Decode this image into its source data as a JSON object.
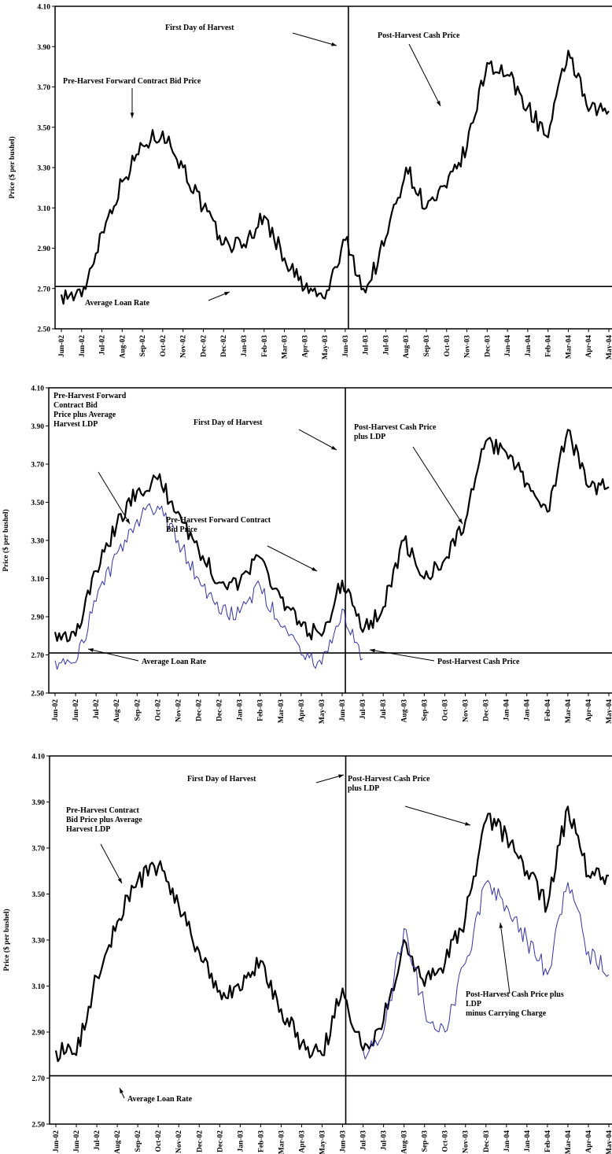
{
  "chart_data": [
    {
      "type": "line",
      "ylabel": "Price ($ per bushel)",
      "ylim": [
        2.5,
        4.1
      ],
      "yticks": [
        "4.10",
        "3.90",
        "3.70",
        "3.50",
        "3.30",
        "3.10",
        "2.90",
        "2.70",
        "2.50"
      ],
      "xticks": [
        "Jun-02",
        "Jun-02",
        "Jul-02",
        "Aug-02",
        "Sep-02",
        "Oct-02",
        "Nov-02",
        "Dec-02",
        "Dec-02",
        "Jan-03",
        "Feb-03",
        "Mar-03",
        "Apr-03",
        "May-03",
        "Jun-03",
        "Jul-03",
        "Jul-03",
        "Aug-03",
        "Sep-03",
        "Oct-03",
        "Nov-03",
        "Dec-03",
        "Jan-04",
        "Jan-04",
        "Feb-04",
        "Mar-04",
        "Apr-04",
        "May-04"
      ],
      "loan_rate": 2.71,
      "harvest_index": 14,
      "series": [
        {
          "values": [
            2.67,
            2.66,
            2.98,
            3.23,
            3.41,
            3.48,
            3.3,
            3.1,
            2.92,
            2.92,
            3.06,
            2.85,
            2.7,
            2.65,
            2.94,
            2.68,
            2.95,
            3.3,
            3.1,
            3.2,
            3.4,
            3.82,
            3.76,
            3.6,
            3.45,
            3.88,
            3.58,
            3.58
          ],
          "color": "#000000",
          "width": 2.2
        }
      ],
      "annotations": [
        {
          "text": "First Day of Harvest"
        },
        {
          "text": "Post-Harvest Cash Price"
        },
        {
          "text": "Pre-Harvest Forward Contract Bid Price"
        },
        {
          "text": "Average Loan Rate"
        }
      ]
    },
    {
      "type": "line",
      "ylabel": "Price ($ per bushel)",
      "ylim": [
        2.5,
        4.1
      ],
      "yticks": [
        "4.10",
        "3.90",
        "3.70",
        "3.50",
        "3.30",
        "3.10",
        "2.90",
        "2.70",
        "2.50"
      ],
      "xticks": [
        "Jun-02",
        "Jun-02",
        "Jul-02",
        "Aug-02",
        "Sep-02",
        "Oct-02",
        "Nov-02",
        "Dec-02",
        "Dec-02",
        "Jan-03",
        "Feb-03",
        "Mar-03",
        "Apr-03",
        "May-03",
        "Jun-03",
        "Jul-03",
        "Jul-03",
        "Aug-03",
        "Sep-03",
        "Oct-03",
        "Nov-03",
        "Dec-03",
        "Jan-04",
        "Jan-04",
        "Feb-04",
        "Mar-04",
        "Apr-04",
        "May-04"
      ],
      "loan_rate": 2.71,
      "harvest_index": 14,
      "series": [
        {
          "values": [
            2.82,
            2.8,
            3.14,
            3.38,
            3.56,
            3.62,
            3.45,
            3.25,
            3.08,
            3.08,
            3.21,
            3.0,
            2.85,
            2.8,
            3.09,
            2.82,
            2.95,
            3.3,
            3.1,
            3.2,
            3.4,
            3.82,
            3.76,
            3.6,
            3.45,
            3.88,
            3.58,
            3.58
          ],
          "color": "#000000",
          "width": 2.2
        },
        {
          "values": [
            2.67,
            2.66,
            2.98,
            3.23,
            3.41,
            3.48,
            3.3,
            3.1,
            2.92,
            2.92,
            3.06,
            2.85,
            2.7,
            2.65,
            2.94,
            2.68,
            null,
            null,
            null,
            null,
            null,
            null,
            null,
            null,
            null,
            null,
            null,
            null
          ],
          "color": "#3333aa",
          "width": 1.0
        }
      ],
      "annotations": [
        {
          "text": "Pre-Harvest Forward\nContract Bid\nPrice plus Average\nHarvest LDP"
        },
        {
          "text": "First Day of Harvest"
        },
        {
          "text": "Post-Harvest Cash Price\nplus LDP"
        },
        {
          "text": "Pre-Harvest Forward Contract\nBid Price"
        },
        {
          "text": "Average Loan Rate"
        },
        {
          "text": "Post-Harvest Cash Price"
        }
      ]
    },
    {
      "type": "line",
      "ylabel": "Price ($ per bushel)",
      "ylim": [
        2.5,
        4.1
      ],
      "yticks": [
        "4.10",
        "3.90",
        "3.70",
        "3.50",
        "3.30",
        "3.10",
        "2.90",
        "2.70",
        "2.50"
      ],
      "xticks": [
        "Jun-02",
        "Jun-02",
        "Jul-02",
        "Aug-02",
        "Sep-02",
        "Oct-02",
        "Nov-02",
        "Dec-02",
        "Dec-02",
        "Jan-03",
        "Feb-03",
        "Mar-03",
        "Apr-03",
        "May-03",
        "Jun-03",
        "Jul-03",
        "Jul-03",
        "Aug-03",
        "Sep-03",
        "Oct-03",
        "Nov-03",
        "Dec-03",
        "Jan-04",
        "Jan-04",
        "Feb-04",
        "Mar-04",
        "Apr-04",
        "May-04"
      ],
      "loan_rate": 2.71,
      "harvest_index": 14,
      "series": [
        {
          "values": [
            2.82,
            2.8,
            3.14,
            3.38,
            3.56,
            3.62,
            3.45,
            3.25,
            3.08,
            3.08,
            3.21,
            3.0,
            2.85,
            2.8,
            3.09,
            2.82,
            2.95,
            3.3,
            3.1,
            3.2,
            3.4,
            3.82,
            3.76,
            3.6,
            3.45,
            3.88,
            3.58,
            3.58
          ],
          "color": "#000000",
          "width": 2.2
        },
        {
          "values": [
            null,
            null,
            null,
            null,
            null,
            null,
            null,
            null,
            null,
            null,
            null,
            null,
            null,
            null,
            null,
            2.82,
            2.9,
            3.35,
            3.0,
            2.9,
            3.2,
            3.55,
            3.45,
            3.3,
            3.15,
            3.55,
            3.25,
            3.15
          ],
          "color": "#3333aa",
          "width": 1.0
        }
      ],
      "annotations": [
        {
          "text": "First Day of Harvest"
        },
        {
          "text": "Pre-Harvest Contract\nBid Price plus Average\nHarvest LDP"
        },
        {
          "text": "Post-Harvest Cash Price\nplus LDP"
        },
        {
          "text": "Post-Harvest Cash Price plus\nLDP\nminus Carrying Charge"
        },
        {
          "text": "Average Loan Rate"
        }
      ]
    }
  ]
}
